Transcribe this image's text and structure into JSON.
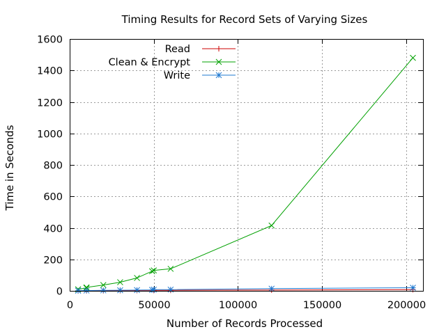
{
  "chart_data": {
    "type": "line",
    "title": "Timing Results for Record Sets of Varying Sizes",
    "xlabel": "Number of Records Processed",
    "ylabel": "Time in Seconds",
    "xlim": [
      0,
      210000
    ],
    "ylim": [
      0,
      1600
    ],
    "xticks": [
      0,
      50000,
      100000,
      150000,
      200000
    ],
    "yticks": [
      0,
      200,
      400,
      600,
      800,
      1000,
      1200,
      1400,
      1600
    ],
    "grid": true,
    "legend_position": "top-left",
    "series": [
      {
        "name": "Read",
        "color": "#cc0000",
        "marker": "plus",
        "points": [
          [
            5000,
            0.5
          ],
          [
            10000,
            1
          ],
          [
            20000,
            1.5
          ],
          [
            30000,
            2
          ],
          [
            40000,
            2.5
          ],
          [
            50000,
            3
          ],
          [
            60000,
            3.5
          ],
          [
            120000,
            5
          ],
          [
            204000,
            8
          ]
        ]
      },
      {
        "name": "Clean & Encrypt",
        "color": "#00a000",
        "marker": "cross",
        "points": [
          [
            5000,
            10
          ],
          [
            10000,
            18
          ],
          [
            10000,
            22
          ],
          [
            20000,
            37
          ],
          [
            30000,
            55
          ],
          [
            40000,
            82
          ],
          [
            49000,
            125
          ],
          [
            50000,
            130
          ],
          [
            60000,
            140
          ],
          [
            120000,
            415
          ],
          [
            204000,
            1480
          ]
        ]
      },
      {
        "name": "Write",
        "color": "#1e78d0",
        "marker": "star",
        "points": [
          [
            5000,
            1
          ],
          [
            10000,
            2
          ],
          [
            20000,
            3
          ],
          [
            30000,
            4
          ],
          [
            40000,
            5
          ],
          [
            49000,
            6
          ],
          [
            50000,
            8
          ],
          [
            60000,
            8
          ],
          [
            120000,
            14
          ],
          [
            204000,
            20
          ]
        ]
      }
    ]
  }
}
